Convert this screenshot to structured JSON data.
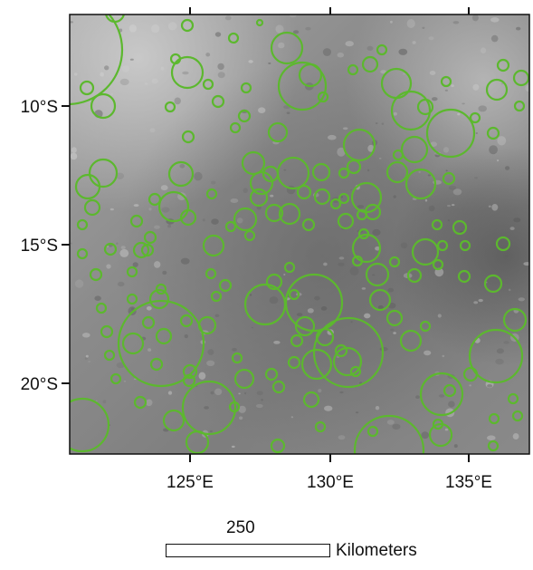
{
  "map": {
    "lat_labels": [
      "10°S",
      "15°S",
      "20°S"
    ],
    "lon_labels": [
      "125°E",
      "130°E",
      "135°E"
    ],
    "crater_color": "#5cb82e",
    "terrain": "grayscale lunar surface image with many impact craters outlined"
  },
  "scale_bar": {
    "value": "250",
    "unit": "Kilometers"
  }
}
